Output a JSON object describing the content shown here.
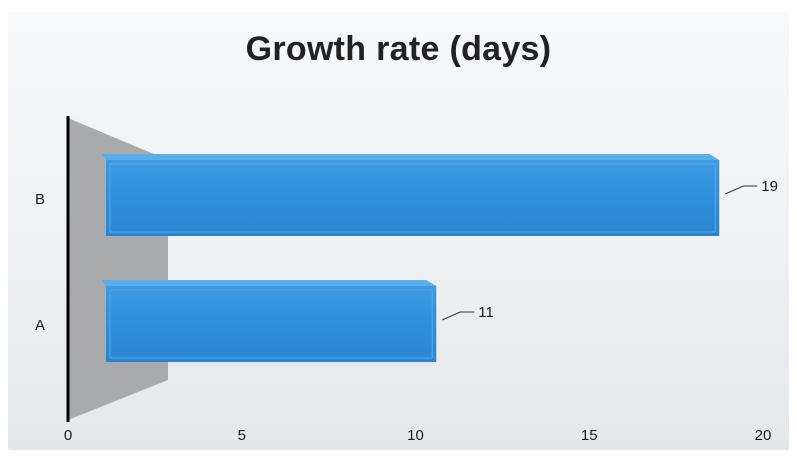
{
  "chart_data": {
    "type": "bar",
    "orientation": "horizontal",
    "title": "Growth rate (days)",
    "categories": [
      "A",
      "B"
    ],
    "values": [
      11,
      19
    ],
    "xlim": [
      0,
      20
    ],
    "xticks": [
      "0",
      "5",
      "10",
      "15",
      "20"
    ],
    "data_labels": [
      "11",
      "19"
    ],
    "xlabel": "",
    "ylabel": "",
    "grid": false,
    "legend": "none",
    "bar_color": "#2e8fdc",
    "style": "3d"
  }
}
